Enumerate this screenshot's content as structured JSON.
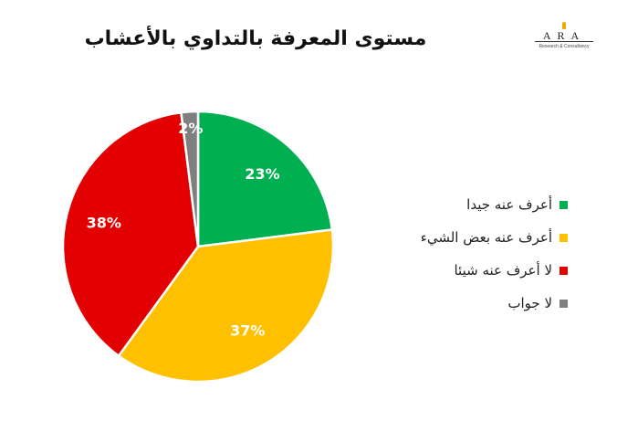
{
  "chart_data": {
    "type": "pie",
    "title": "مستوى المعرفة بالتداوي بالأعشاب",
    "categories": [
      "أعرف عنه جيدا",
      "أعرف عنه بعض الشيء",
      "لا أعرف عنه شيئا",
      "لا جواب"
    ],
    "values": [
      23,
      37,
      38,
      2
    ],
    "labels": [
      "23%",
      "37%",
      "38%",
      "2%"
    ],
    "colors": [
      "#00B050",
      "#FFC000",
      "#E30000",
      "#7F7F7F"
    ],
    "legend_position": "right"
  },
  "logo": {
    "text": "ARA",
    "subtitle": "Research & Consultancy"
  }
}
